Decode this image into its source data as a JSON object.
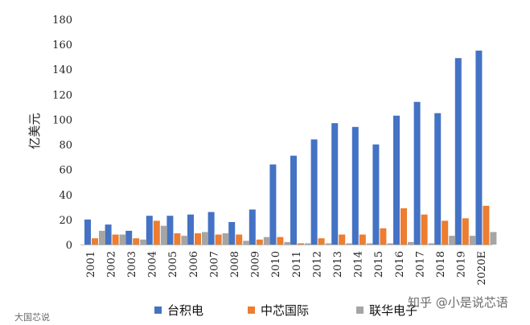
{
  "chart_data": {
    "type": "bar",
    "title": "",
    "xlabel": "",
    "ylabel": "亿美元",
    "ylim": [
      0,
      180
    ],
    "yticks": [
      0,
      20,
      40,
      60,
      80,
      100,
      120,
      140,
      160,
      180
    ],
    "grid": false,
    "legend_position": "bottom",
    "categories": [
      "2001",
      "2002",
      "2003",
      "2004",
      "2005",
      "2006",
      "2007",
      "2008",
      "2009",
      "2010",
      "2011",
      "2012",
      "2013",
      "2014",
      "2015",
      "2016",
      "2017",
      "2018",
      "2019",
      "2020E"
    ],
    "series": [
      {
        "name": "台积电",
        "color": "#4472C4",
        "values": [
          20,
          16,
          11,
          23,
          23,
          24,
          26,
          18,
          28,
          64,
          71,
          84,
          97,
          94,
          80,
          103,
          114,
          105,
          149,
          155
        ]
      },
      {
        "name": "中芯国际",
        "color": "#ED7D31",
        "values": [
          5,
          8,
          5,
          19,
          9,
          9,
          8,
          8,
          4,
          6,
          1,
          5,
          8,
          8,
          13,
          29,
          24,
          19,
          21,
          31
        ]
      },
      {
        "name": "联华电子",
        "color": "#A5A5A5",
        "values": [
          11,
          8,
          4,
          15,
          7,
          10,
          9,
          3,
          6,
          2,
          1,
          1,
          1,
          1,
          1,
          2,
          1,
          7,
          7,
          10
        ]
      }
    ]
  },
  "watermarks": {
    "left": "大国芯说",
    "right": "知乎 @小是说芯语"
  }
}
